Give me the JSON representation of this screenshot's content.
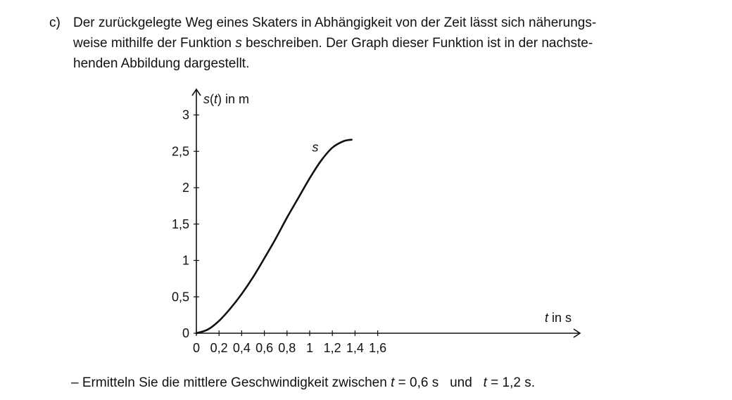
{
  "task": {
    "label": "c)",
    "lines": [
      {
        "a": "Der zurückgelegte Weg eines Skaters in Abhängigkeit von der Zeit lässt sich näherungs-"
      },
      {
        "a": "weise mithilfe der Funktion ",
        "var": "s",
        "b": " beschreiben. Der Graph dieser Funktion ist in der nachste-"
      },
      {
        "a": "henden Abbildung dargestellt."
      }
    ]
  },
  "chart_data": {
    "type": "line",
    "ylabel": {
      "func": "s",
      "arg": "t",
      "rest": " in m"
    },
    "xlabel": {
      "var": "t",
      "rest": " in s"
    },
    "xlim": [
      0,
      1.7
    ],
    "ylim": [
      0,
      3.1
    ],
    "x_ticks": [
      0,
      0.2,
      0.4,
      0.6,
      0.8,
      1,
      1.2,
      1.4,
      1.6
    ],
    "x_tick_labels": [
      "0",
      "0,2",
      "0,4",
      "0,6",
      "0,8",
      "1",
      "1,2",
      "1,4",
      "1,6"
    ],
    "y_ticks": [
      0,
      0.5,
      1,
      1.5,
      2,
      2.5,
      3
    ],
    "y_tick_labels": [
      "0",
      "0,5",
      "1",
      "1,5",
      "2",
      "2,5",
      "3"
    ],
    "grid": false,
    "series": [
      {
        "name": "s",
        "x": [
          0,
          0.1,
          0.2,
          0.3,
          0.4,
          0.5,
          0.6,
          0.7,
          0.8,
          0.9,
          1.0,
          1.1,
          1.2,
          1.3,
          1.37
        ],
        "y": [
          0,
          0.05,
          0.17,
          0.34,
          0.54,
          0.77,
          1.03,
          1.3,
          1.59,
          1.86,
          2.13,
          2.37,
          2.55,
          2.64,
          2.66
        ]
      }
    ]
  },
  "bullet": {
    "dash": "–",
    "text": " Ermitteln Sie die mittlere Geschwindigkeit zwischen ",
    "var1": "t",
    "eq1": " = 0,6 s",
    "und": "und",
    "var2": "t",
    "eq2": " = 1,2 s."
  }
}
